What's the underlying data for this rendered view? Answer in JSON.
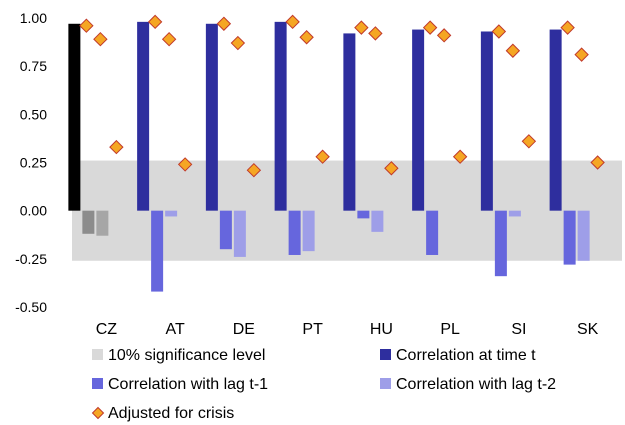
{
  "chart_data": {
    "type": "bar",
    "categories": [
      "CZ",
      "AT",
      "DE",
      "PT",
      "HU",
      "PL",
      "SI",
      "SK"
    ],
    "ylim": [
      -0.5,
      1.0
    ],
    "yticks": [
      "1.00",
      "0.75",
      "0.50",
      "0.25",
      "0.00",
      "-0.25",
      "-0.50"
    ],
    "ytick_values": [
      1.0,
      0.75,
      0.5,
      0.25,
      0.0,
      -0.25,
      -0.5
    ],
    "grid": false,
    "legend_position": "bottom",
    "significance_band": {
      "name": "10% significance level",
      "lower": -0.26,
      "upper": 0.26,
      "color": "#d9d9d9"
    },
    "series": [
      {
        "name": "Correlation at time t",
        "color": "#2e2e9e",
        "highlight_first_color": "#000000",
        "values": [
          0.97,
          0.98,
          0.97,
          0.98,
          0.92,
          0.94,
          0.93,
          0.94
        ]
      },
      {
        "name": "Correlation with lag t-1",
        "color": "#6666dd",
        "highlight_first_color": "#8c8c8c",
        "values": [
          -0.12,
          -0.42,
          -0.2,
          -0.23,
          -0.04,
          -0.23,
          -0.34,
          -0.28
        ]
      },
      {
        "name": "Correlation with lag t-2",
        "color": "#9e9ee8",
        "highlight_first_color": "#a6a6a6",
        "values": [
          -0.13,
          -0.03,
          -0.24,
          -0.21,
          -0.11,
          0.0,
          -0.03,
          -0.26
        ]
      }
    ],
    "adjusted": {
      "name": "Adjusted for crisis",
      "color": "#f5a623",
      "border": "#c0392b",
      "points": [
        [
          0.96,
          0.89,
          0.33
        ],
        [
          0.98,
          0.89,
          0.24
        ],
        [
          0.97,
          0.87,
          0.21
        ],
        [
          0.98,
          0.9,
          0.28
        ],
        [
          0.95,
          0.92,
          0.22
        ],
        [
          0.95,
          0.91,
          0.28
        ],
        [
          0.93,
          0.83,
          0.36
        ],
        [
          0.95,
          0.81,
          0.25
        ]
      ]
    },
    "legend": [
      {
        "label": "10% significance level",
        "marker": "square",
        "color": "#d9d9d9"
      },
      {
        "label": "Correlation at time t",
        "marker": "square",
        "color": "#2e2e9e"
      },
      {
        "label": "Correlation with lag t-1",
        "marker": "square",
        "color": "#6666dd"
      },
      {
        "label": "Correlation with lag t-2",
        "marker": "square",
        "color": "#9e9ee8"
      },
      {
        "label": "Adjusted for crisis",
        "marker": "diamond",
        "color": "#f5a623"
      }
    ]
  }
}
